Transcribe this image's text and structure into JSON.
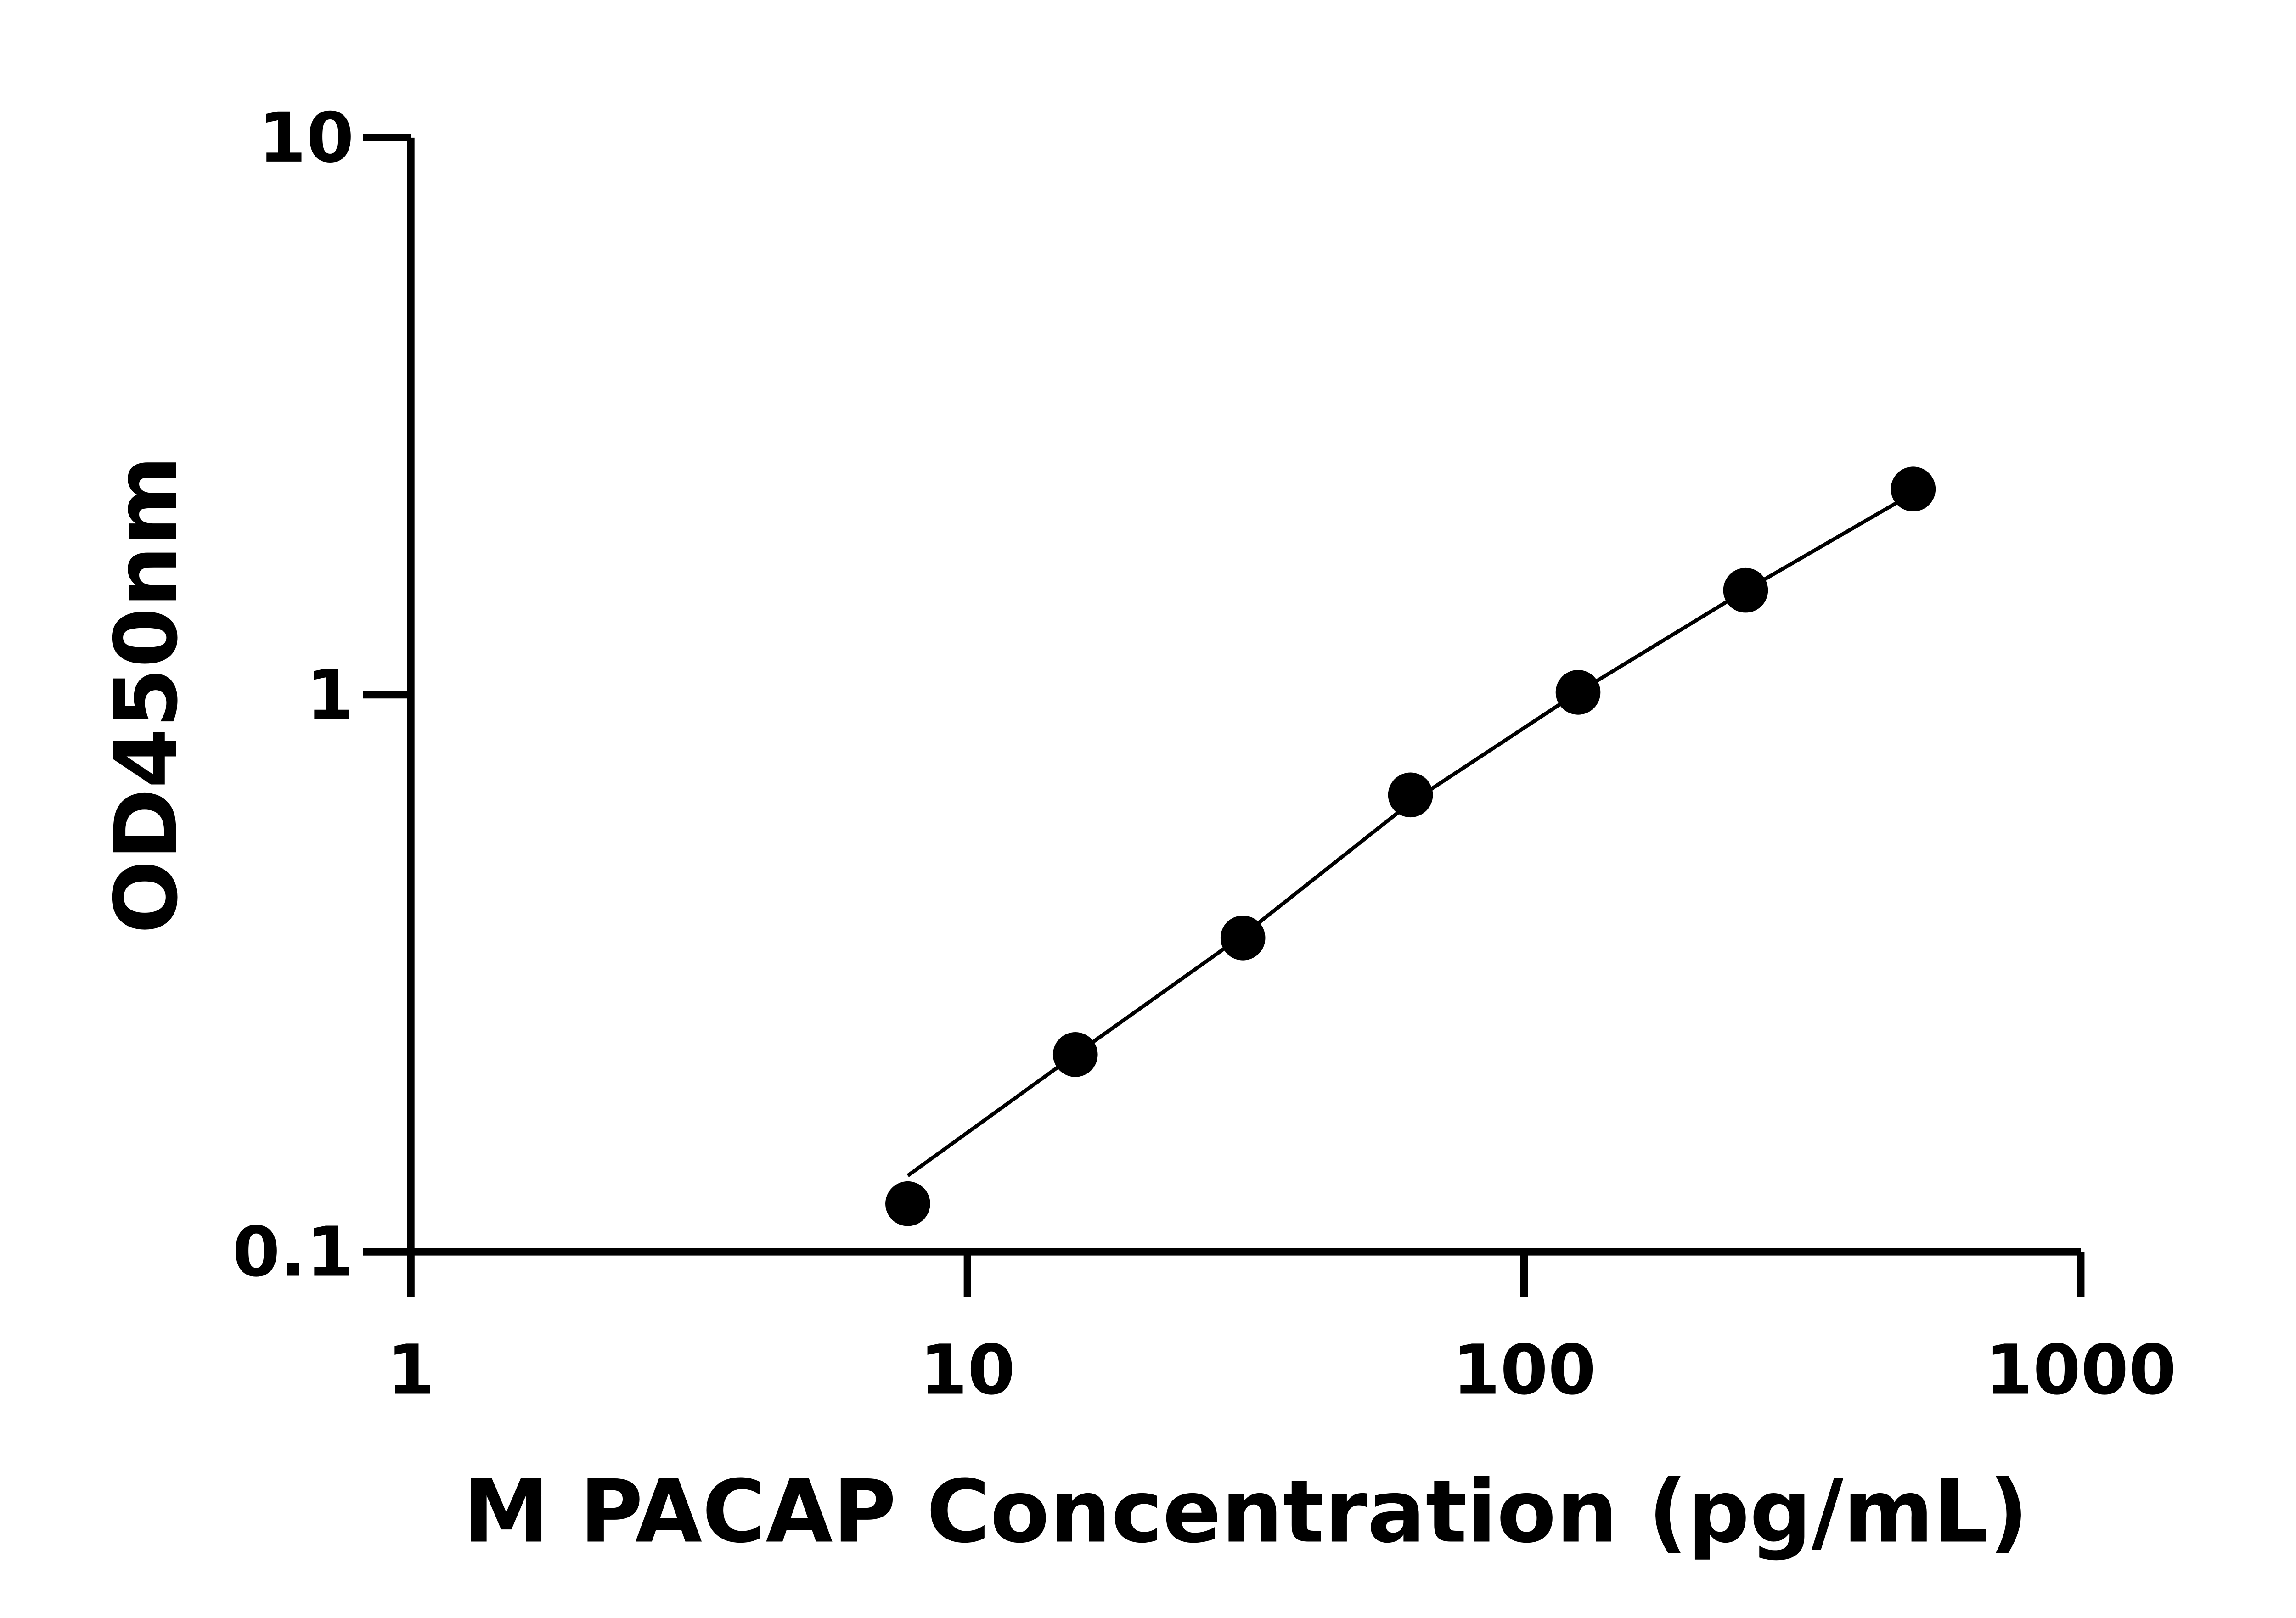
{
  "chart_data": {
    "type": "scatter",
    "x_label": "M PACAP Concentration (pg/mL)",
    "y_label": "OD450nm",
    "x_log": true,
    "y_log": true,
    "xlim": [
      1,
      1000
    ],
    "ylim": [
      0.1,
      10
    ],
    "xticks": [
      1,
      10,
      100,
      1000
    ],
    "yticks": [
      0.1,
      1,
      10
    ],
    "color": "#000000",
    "series": [
      {
        "x": [
          7.8125,
          15.625,
          31.25,
          62.5,
          125,
          250,
          500
        ],
        "values": [
          0.122,
          0.226,
          0.366,
          0.661,
          1.01,
          1.54,
          2.34
        ]
      }
    ],
    "fit": {
      "x": [
        7.8125,
        15.625,
        31.25,
        62.5,
        125,
        250,
        500
      ],
      "values": [
        0.137,
        0.226,
        0.37,
        0.64,
        1.01,
        1.54,
        2.3
      ]
    }
  }
}
